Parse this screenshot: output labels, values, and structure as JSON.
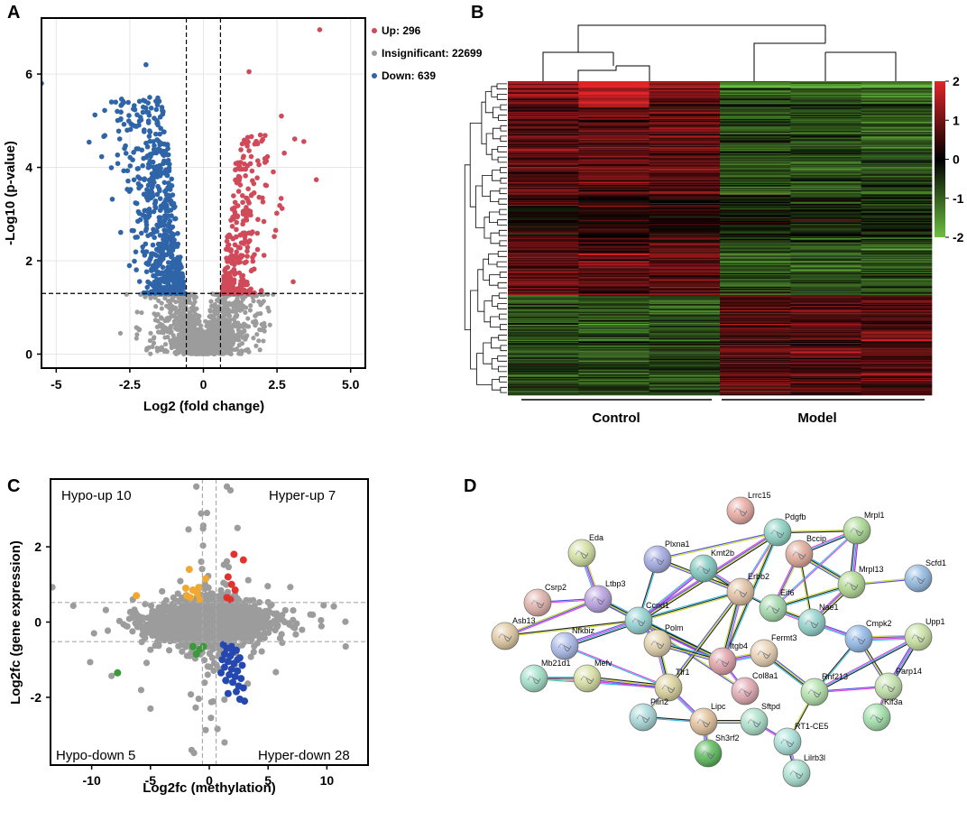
{
  "panels": {
    "a": "A",
    "b": "B",
    "c": "C",
    "d": "D"
  },
  "colors": {
    "up": "#d04a5a",
    "down": "#2f65a8",
    "insig": "#9c9c9c",
    "hyper_up": "#e3322e",
    "hypo_up": "#f0a830",
    "hypo_down": "#3a9a3a",
    "hyper_down": "#2448b0",
    "heat_high": "#e0262a",
    "heat_mid": "#000000",
    "heat_low": "#6cc040"
  },
  "chart_data": [
    {
      "type": "scatter",
      "name": "volcano",
      "xlabel": "Log2 (fold change)",
      "ylabel": "-Log10 (p-value)",
      "xlim": [
        -5.5,
        5.5
      ],
      "ylim": [
        -0.3,
        7.2
      ],
      "xticks": [
        -5,
        -2.5,
        0,
        2.5,
        5
      ],
      "xtick_labels": [
        "-5",
        "-2.5",
        "0",
        "2.5",
        "5.0"
      ],
      "yticks": [
        0,
        2,
        4,
        6
      ],
      "ytick_labels": [
        "0",
        "2",
        "4",
        "6"
      ],
      "thresholds": {
        "fc": [
          -0.58,
          0.58
        ],
        "p": 1.3
      },
      "legend": [
        {
          "key": "up",
          "label": "Up: 296"
        },
        {
          "key": "insig",
          "label": "Insignificant: 22699"
        },
        {
          "key": "down",
          "label": "Down: 639"
        }
      ],
      "highlight_points": [
        {
          "x": 3.95,
          "y": 6.95,
          "group": "up"
        },
        {
          "x": -1.95,
          "y": 6.2,
          "group": "down"
        },
        {
          "x": 1.55,
          "y": 6.05,
          "group": "up"
        },
        {
          "x": -5.5,
          "y": 5.8,
          "group": "down"
        },
        {
          "x": 2.65,
          "y": 5.1,
          "group": "up"
        },
        {
          "x": 3.05,
          "y": 1.55,
          "group": "up"
        }
      ],
      "counts": {
        "up": 296,
        "down": 639
      }
    },
    {
      "type": "heatmap",
      "name": "clustered-heatmap",
      "columns": 6,
      "groups": [
        {
          "label": "Control",
          "columns": 3
        },
        {
          "label": "Model",
          "columns": 3
        }
      ],
      "colorbar": {
        "min": -2,
        "max": 2,
        "ticks": [
          2,
          1,
          0,
          -1,
          -2
        ],
        "tick_labels": [
          "2",
          "1",
          "0",
          "-1",
          "-2"
        ]
      },
      "rows": 330
    },
    {
      "type": "scatter",
      "name": "quadrant",
      "xlabel": "Log2fc (methylation)",
      "ylabel": "Log2fc (gene expression)",
      "xlim": [
        -13.5,
        13.5
      ],
      "ylim": [
        -3.8,
        3.8
      ],
      "xticks": [
        -10,
        -5,
        0,
        5,
        10
      ],
      "xtick_labels": [
        "-10",
        "-5",
        "0",
        "5",
        "10"
      ],
      "yticks": [
        -2,
        0,
        2
      ],
      "ytick_labels": [
        "-2",
        "0",
        "2"
      ],
      "quadrants": [
        {
          "key": "hypo_up",
          "label": "Hypo-up 10"
        },
        {
          "key": "hyper_up",
          "label": "Hyper-up 7"
        },
        {
          "key": "hypo_down",
          "label": "Hypo-down 5"
        },
        {
          "key": "hyper_down",
          "label": "Hyper-down 28"
        }
      ],
      "points": {
        "hyper_up": [
          [
            2.1,
            1.8
          ],
          [
            2.9,
            1.65
          ],
          [
            1.6,
            1.2
          ],
          [
            1.9,
            1.0
          ],
          [
            2.2,
            0.85
          ],
          [
            1.5,
            0.65
          ],
          [
            1.8,
            0.6
          ]
        ],
        "hypo_up": [
          [
            -6.2,
            0.7
          ],
          [
            -1.7,
            1.4
          ],
          [
            -2.0,
            0.9
          ],
          [
            -1.4,
            0.85
          ],
          [
            -1.0,
            0.75
          ],
          [
            -1.6,
            0.65
          ],
          [
            -0.8,
            0.6
          ],
          [
            -0.3,
            1.15
          ],
          [
            -1.9,
            0.7
          ],
          [
            -0.9,
            0.92
          ]
        ],
        "hypo_down": [
          [
            -7.8,
            -1.35
          ],
          [
            -1.4,
            -0.65
          ],
          [
            -0.8,
            -0.72
          ],
          [
            -1.1,
            -0.85
          ],
          [
            -0.5,
            -0.65
          ]
        ],
        "hyper_down": [
          [
            1.2,
            -0.6
          ],
          [
            1.5,
            -0.7
          ],
          [
            1.9,
            -0.65
          ],
          [
            2.3,
            -0.75
          ],
          [
            1.3,
            -0.85
          ],
          [
            1.8,
            -0.9
          ],
          [
            2.6,
            -0.95
          ],
          [
            1.1,
            -1.0
          ],
          [
            1.6,
            -1.05
          ],
          [
            2.1,
            -1.1
          ],
          [
            2.8,
            -1.15
          ],
          [
            1.3,
            -1.2
          ],
          [
            1.9,
            -1.25
          ],
          [
            2.4,
            -1.3
          ],
          [
            1.0,
            -1.35
          ],
          [
            1.7,
            -1.4
          ],
          [
            2.2,
            -1.45
          ],
          [
            2.7,
            -1.5
          ],
          [
            1.4,
            -1.55
          ],
          [
            2.0,
            -1.6
          ],
          [
            2.5,
            -1.7
          ],
          [
            2.9,
            -1.75
          ],
          [
            2.3,
            -1.85
          ],
          [
            1.6,
            -1.9
          ],
          [
            2.6,
            -2.05
          ],
          [
            3.0,
            -2.1
          ],
          [
            2.0,
            -0.8
          ],
          [
            2.4,
            -1.0
          ]
        ]
      }
    },
    {
      "type": "network",
      "name": "ppi-network",
      "nodes": [
        "Lrrc15",
        "Pdgfb",
        "Kmt2b",
        "Mrpl1",
        "Bccip",
        "Eda",
        "Plxna1",
        "Mrpl13",
        "Scfd1",
        "Csrp2",
        "Ltbp3",
        "Erbb2",
        "Eif6",
        "Asb13",
        "Ccnd1",
        "Nae1",
        "Cmpk2",
        "Upp1",
        "Nfkbiz",
        "Polm",
        "Fermt3",
        "Itgb4",
        "Mb21d1",
        "Mefv",
        "Tlr1",
        "Col8a1",
        "Rnf213",
        "Parp14",
        "Lipc",
        "Sftpd",
        "Kif3a",
        "Plin2",
        "Sh3rf2",
        "RT1-CE5",
        "Lilrb3l"
      ]
    }
  ]
}
